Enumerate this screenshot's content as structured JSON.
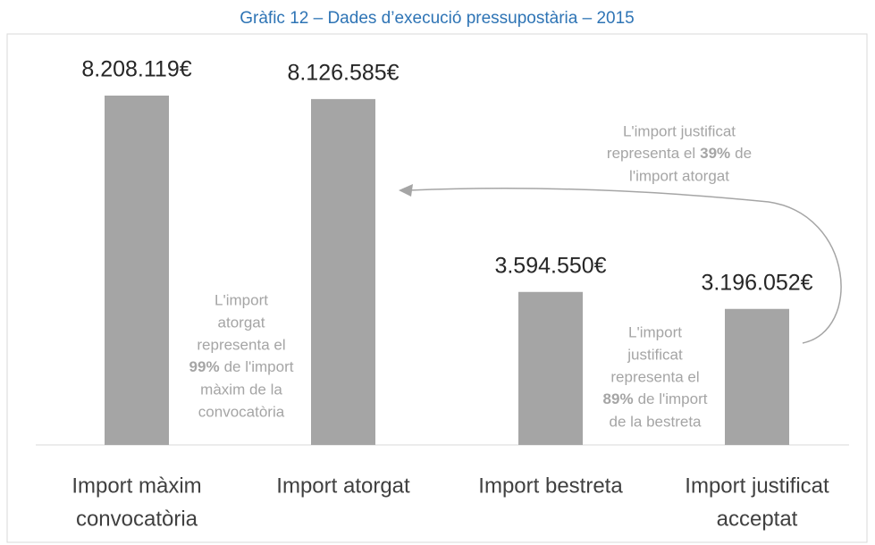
{
  "chart_data": {
    "type": "bar",
    "title": "Gràfic 12 – Dades d’execució pressupostària – 2015",
    "categories": [
      [
        "Import màxim",
        "convocatòria"
      ],
      [
        "Import atorgat"
      ],
      [
        "Import bestreta"
      ],
      [
        "Import justificat",
        "acceptat"
      ]
    ],
    "values": [
      8208119,
      8126585,
      3594550,
      3196052
    ],
    "value_labels": [
      "8.208.119€",
      "8.126.585€",
      "3.594.550€",
      "3.196.052€"
    ],
    "color": "#a5a5a5",
    "annotations": [
      {
        "lines": [
          "L'import",
          "atorgat",
          "representa el",
          {
            "bold": "99%",
            "rest": "de l'import"
          },
          "màxim de la",
          "convocatòria"
        ]
      },
      {
        "lines": [
          "L'import justificat",
          {
            "pre": "representa el",
            "bold": "39%",
            "rest": "de"
          },
          "l'import atorgat"
        ]
      },
      {
        "lines": [
          "L'import",
          "justificat",
          "representa el",
          {
            "bold": "89%",
            "rest": "de l'import"
          },
          "de la bestreta"
        ]
      }
    ]
  }
}
